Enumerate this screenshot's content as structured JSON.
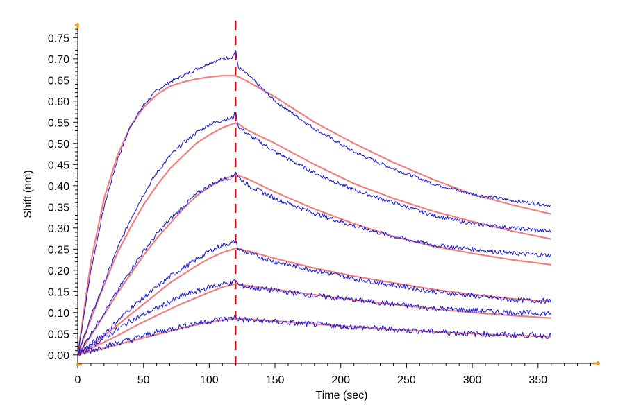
{
  "chart_data": {
    "type": "line",
    "title": "",
    "xlabel": "Time (sec)",
    "ylabel": "Shift (nm)",
    "xlim": [
      0,
      395
    ],
    "ylim": [
      -0.02,
      0.78
    ],
    "x_ticks": [
      0,
      50,
      100,
      150,
      200,
      250,
      300,
      350
    ],
    "y_ticks": [
      0.0,
      0.05,
      0.1,
      0.15,
      0.2,
      0.25,
      0.3,
      0.35,
      0.4,
      0.45,
      0.5,
      0.55,
      0.6,
      0.65,
      0.7,
      0.75
    ],
    "y_tick_labels": [
      "0.00",
      "0.05",
      "0.10",
      "0.15",
      "0.20",
      "0.25",
      "0.30",
      "0.35",
      "0.40",
      "0.45",
      "0.50",
      "0.55",
      "0.60",
      "0.65",
      "0.70",
      "0.75"
    ],
    "grid": false,
    "legend": "none",
    "marker_line": {
      "x": 120,
      "style": "dashed",
      "color": "#c0141c"
    },
    "colors": {
      "measured": "#2020d0",
      "fit": "#f08080",
      "axis_marker": "#f0a020"
    },
    "series": [
      {
        "x": [
          0,
          10,
          20,
          30,
          40,
          50,
          60,
          70,
          80,
          90,
          100,
          110,
          118,
          120,
          122,
          130,
          150,
          180,
          210,
          240,
          270,
          300,
          330,
          360
        ],
        "measured": [
          0.0,
          0.2,
          0.35,
          0.46,
          0.54,
          0.59,
          0.625,
          0.645,
          0.66,
          0.675,
          0.69,
          0.7,
          0.705,
          0.72,
          0.68,
          0.66,
          0.6,
          0.535,
          0.48,
          0.44,
          0.405,
          0.38,
          0.365,
          0.353
        ],
        "fit": [
          0.0,
          0.22,
          0.37,
          0.47,
          0.54,
          0.585,
          0.615,
          0.635,
          0.645,
          0.652,
          0.657,
          0.66,
          0.66,
          0.66,
          0.658,
          0.645,
          0.61,
          0.55,
          0.5,
          0.455,
          0.415,
          0.38,
          0.355,
          0.333
        ]
      },
      {
        "x": [
          0,
          10,
          20,
          30,
          40,
          50,
          60,
          70,
          80,
          90,
          100,
          110,
          118,
          120,
          122,
          130,
          150,
          180,
          210,
          240,
          270,
          300,
          330,
          360
        ],
        "measured": [
          0.0,
          0.09,
          0.17,
          0.25,
          0.32,
          0.38,
          0.43,
          0.47,
          0.5,
          0.525,
          0.545,
          0.555,
          0.56,
          0.575,
          0.54,
          0.52,
          0.48,
          0.43,
          0.39,
          0.36,
          0.33,
          0.31,
          0.3,
          0.292
        ],
        "fit": [
          0.0,
          0.085,
          0.165,
          0.24,
          0.3,
          0.355,
          0.4,
          0.44,
          0.47,
          0.5,
          0.52,
          0.537,
          0.546,
          0.548,
          0.546,
          0.53,
          0.5,
          0.45,
          0.405,
          0.37,
          0.34,
          0.315,
          0.293,
          0.274
        ]
      },
      {
        "x": [
          0,
          10,
          20,
          30,
          40,
          50,
          60,
          70,
          80,
          90,
          100,
          110,
          118,
          120,
          122,
          130,
          150,
          180,
          210,
          240,
          270,
          300,
          330,
          360
        ],
        "measured": [
          0.0,
          0.05,
          0.1,
          0.15,
          0.2,
          0.245,
          0.285,
          0.32,
          0.35,
          0.38,
          0.4,
          0.415,
          0.42,
          0.435,
          0.42,
          0.4,
          0.37,
          0.335,
          0.305,
          0.28,
          0.26,
          0.25,
          0.24,
          0.235
        ],
        "fit": [
          0.0,
          0.045,
          0.095,
          0.145,
          0.19,
          0.235,
          0.275,
          0.31,
          0.345,
          0.375,
          0.397,
          0.415,
          0.423,
          0.425,
          0.424,
          0.415,
          0.385,
          0.345,
          0.31,
          0.28,
          0.257,
          0.24,
          0.225,
          0.213
        ]
      },
      {
        "x": [
          0,
          10,
          20,
          30,
          40,
          50,
          60,
          70,
          80,
          90,
          100,
          110,
          118,
          120,
          122,
          130,
          150,
          180,
          210,
          240,
          270,
          300,
          330,
          360
        ],
        "measured": [
          0.0,
          0.025,
          0.05,
          0.08,
          0.11,
          0.135,
          0.16,
          0.185,
          0.205,
          0.225,
          0.245,
          0.26,
          0.265,
          0.27,
          0.25,
          0.24,
          0.22,
          0.2,
          0.18,
          0.165,
          0.15,
          0.14,
          0.13,
          0.127
        ],
        "fit": [
          0.0,
          0.02,
          0.045,
          0.07,
          0.095,
          0.12,
          0.145,
          0.17,
          0.19,
          0.21,
          0.228,
          0.242,
          0.25,
          0.252,
          0.251,
          0.245,
          0.228,
          0.205,
          0.186,
          0.17,
          0.155,
          0.143,
          0.133,
          0.126
        ]
      },
      {
        "x": [
          0,
          10,
          20,
          30,
          40,
          50,
          60,
          70,
          80,
          90,
          100,
          110,
          118,
          120,
          122,
          130,
          150,
          180,
          210,
          240,
          270,
          300,
          330,
          360
        ],
        "measured": [
          0.0,
          0.02,
          0.04,
          0.06,
          0.08,
          0.095,
          0.11,
          0.125,
          0.14,
          0.15,
          0.16,
          0.168,
          0.17,
          0.178,
          0.165,
          0.16,
          0.152,
          0.14,
          0.13,
          0.12,
          0.11,
          0.105,
          0.1,
          0.098
        ],
        "fit": [
          0.0,
          0.015,
          0.03,
          0.045,
          0.062,
          0.078,
          0.093,
          0.108,
          0.122,
          0.135,
          0.148,
          0.16,
          0.166,
          0.168,
          0.167,
          0.163,
          0.155,
          0.142,
          0.13,
          0.119,
          0.109,
          0.1,
          0.093,
          0.087
        ]
      },
      {
        "x": [
          0,
          10,
          20,
          30,
          40,
          50,
          60,
          70,
          80,
          90,
          100,
          110,
          118,
          120,
          122,
          130,
          150,
          180,
          210,
          240,
          270,
          300,
          330,
          360
        ],
        "measured": [
          0.0,
          0.01,
          0.02,
          0.028,
          0.035,
          0.045,
          0.053,
          0.06,
          0.068,
          0.075,
          0.08,
          0.084,
          0.086,
          0.092,
          0.085,
          0.082,
          0.078,
          0.072,
          0.066,
          0.06,
          0.055,
          0.05,
          0.047,
          0.045
        ],
        "fit": [
          0.0,
          0.008,
          0.016,
          0.024,
          0.032,
          0.04,
          0.048,
          0.056,
          0.064,
          0.071,
          0.077,
          0.082,
          0.085,
          0.086,
          0.086,
          0.084,
          0.08,
          0.073,
          0.066,
          0.06,
          0.055,
          0.05,
          0.046,
          0.043
        ]
      }
    ]
  }
}
